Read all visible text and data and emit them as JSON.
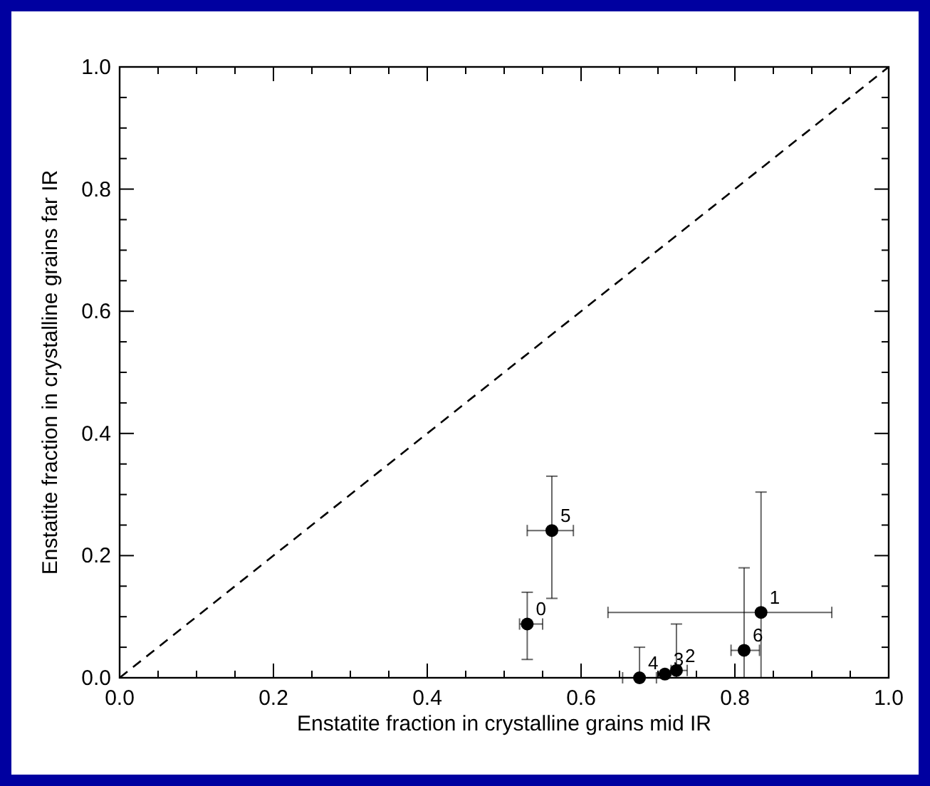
{
  "chart_data": {
    "type": "scatter",
    "xlabel": "Enstatite fraction in crystalline grains mid IR",
    "ylabel": "Enstatite fraction  in crystalline grains far IR",
    "xlim": [
      0,
      1
    ],
    "ylim": [
      0,
      1
    ],
    "xticks": [
      {
        "value": 0,
        "label": "0.0"
      },
      {
        "value": 0.05,
        "label": null
      },
      {
        "value": 0.1,
        "label": null
      },
      {
        "value": 0.15,
        "label": null
      },
      {
        "value": 0.2,
        "label": "0.2"
      },
      {
        "value": 0.25,
        "label": null
      },
      {
        "value": 0.3,
        "label": null
      },
      {
        "value": 0.35,
        "label": null
      },
      {
        "value": 0.4,
        "label": "0.4"
      },
      {
        "value": 0.45,
        "label": null
      },
      {
        "value": 0.5,
        "label": null
      },
      {
        "value": 0.55,
        "label": null
      },
      {
        "value": 0.6,
        "label": "0.6"
      },
      {
        "value": 0.65,
        "label": null
      },
      {
        "value": 0.7,
        "label": null
      },
      {
        "value": 0.75,
        "label": null
      },
      {
        "value": 0.8,
        "label": "0.8"
      },
      {
        "value": 0.85,
        "label": null
      },
      {
        "value": 0.9,
        "label": null
      },
      {
        "value": 0.95,
        "label": null
      },
      {
        "value": 1,
        "label": "1.0"
      }
    ],
    "yticks": [
      {
        "value": 0,
        "label": "0.0"
      },
      {
        "value": 0.05,
        "label": null
      },
      {
        "value": 0.1,
        "label": null
      },
      {
        "value": 0.15,
        "label": null
      },
      {
        "value": 0.2,
        "label": "0.2"
      },
      {
        "value": 0.25,
        "label": null
      },
      {
        "value": 0.3,
        "label": null
      },
      {
        "value": 0.35,
        "label": null
      },
      {
        "value": 0.4,
        "label": "0.4"
      },
      {
        "value": 0.45,
        "label": null
      },
      {
        "value": 0.5,
        "label": null
      },
      {
        "value": 0.55,
        "label": null
      },
      {
        "value": 0.6,
        "label": "0.6"
      },
      {
        "value": 0.65,
        "label": null
      },
      {
        "value": 0.7,
        "label": null
      },
      {
        "value": 0.75,
        "label": null
      },
      {
        "value": 0.8,
        "label": "0.8"
      },
      {
        "value": 0.85,
        "label": null
      },
      {
        "value": 0.9,
        "label": null
      },
      {
        "value": 0.95,
        "label": null
      },
      {
        "value": 1,
        "label": "1.0"
      }
    ],
    "grid": false,
    "series": [
      {
        "type": "scatter",
        "marker": "circle",
        "color": "#000000",
        "x": [
          0.53,
          0.834,
          0.724,
          0.709,
          0.676,
          0.562,
          0.812
        ],
        "values": [
          0.088,
          0.107,
          0.012,
          0.006,
          0.0,
          0.241,
          0.045
        ],
        "xerrors": [
          [
            0.52,
            0.55
          ],
          [
            0.635,
            0.926
          ],
          [
            0.717,
            0.738
          ],
          null,
          [
            0.654,
            0.698
          ],
          [
            0.53,
            0.59
          ],
          [
            0.795,
            0.832
          ]
        ],
        "errors": [
          [
            0.03,
            0.14
          ],
          [
            0,
            0.304
          ],
          [
            0,
            0.088
          ],
          null,
          [
            0,
            0.05
          ],
          [
            0.13,
            0.33
          ],
          [
            0,
            0.18
          ]
        ]
      },
      {
        "type": "line",
        "color": "#000000",
        "line_style": "dashed",
        "x": [
          0,
          1
        ],
        "values": [
          0,
          1
        ]
      }
    ],
    "annotations": [
      {
        "text": "0",
        "x": 0.53,
        "y": 0.088
      },
      {
        "text": "1",
        "x": 0.834,
        "y": 0.107
      },
      {
        "text": "2",
        "x": 0.724,
        "y": 0.012
      },
      {
        "text": "3",
        "x": 0.709,
        "y": 0.006
      },
      {
        "text": "4",
        "x": 0.676,
        "y": 0.0
      },
      {
        "text": "5",
        "x": 0.562,
        "y": 0.241
      },
      {
        "text": "6",
        "x": 0.812,
        "y": 0.045
      }
    ]
  }
}
